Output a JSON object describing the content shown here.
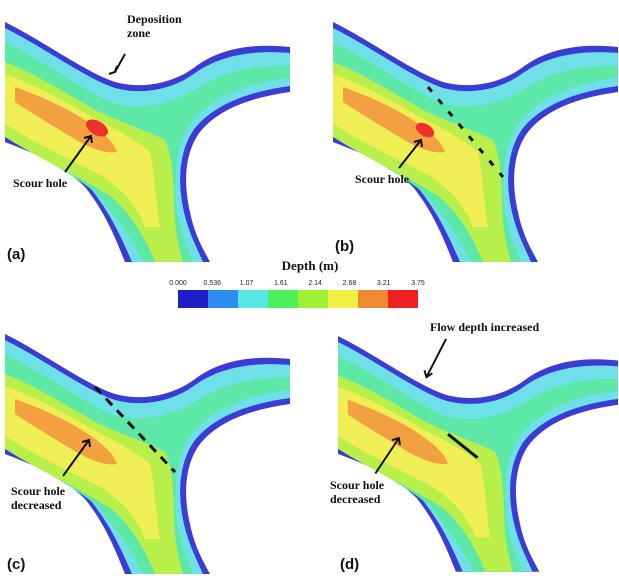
{
  "panels": [
    {
      "id": "a",
      "label": "(a)",
      "annotations": [
        "Deposition zone",
        "Scour hole"
      ]
    },
    {
      "id": "b",
      "label": "(b)",
      "annotations": [
        "Scour hole"
      ]
    },
    {
      "id": "c",
      "label": "(c)",
      "annotations": [
        "Scour hole decreased"
      ]
    },
    {
      "id": "d",
      "label": "(d)",
      "annotations": [
        "Flow depth increased",
        "Scour hole decreased"
      ]
    }
  ],
  "colorbar": {
    "title": "Depth (m)",
    "ticks": [
      "0.000",
      "0.536",
      "1.07",
      "1.61",
      "2.14",
      "2.68",
      "3.21",
      "3.75"
    ],
    "colors": [
      "#1e1ec8",
      "#2f8cf0",
      "#55e6e6",
      "#4df05a",
      "#9ff032",
      "#f0f040",
      "#f08a30",
      "#f02020"
    ]
  }
}
